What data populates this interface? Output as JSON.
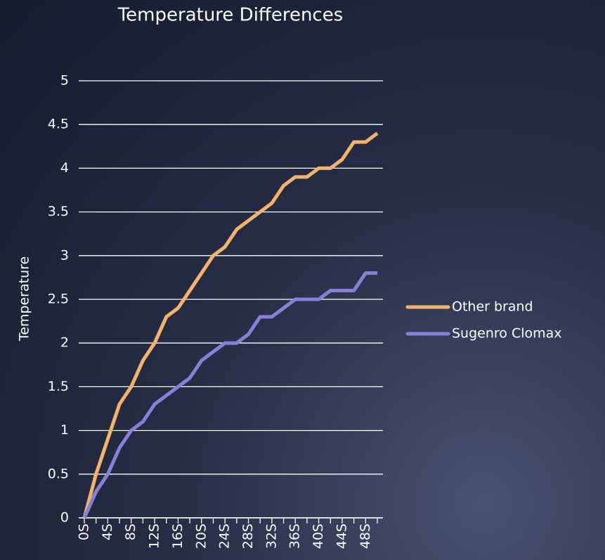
{
  "chart_data": {
    "type": "line",
    "title": "Temperature Differences",
    "y_label": "Temperature",
    "categories": [
      "0S",
      null,
      "4S",
      null,
      "8S",
      null,
      "12S",
      null,
      "16S",
      null,
      "20S",
      null,
      "24S",
      null,
      "28S",
      null,
      "32S",
      null,
      "36S",
      null,
      "40S",
      null,
      "44S",
      null,
      "48S",
      null
    ],
    "series": [
      {
        "name": "Other brand",
        "color": "#f5b26b",
        "values": [
          0,
          0.5,
          0.9,
          1.3,
          1.5,
          1.8,
          2.0,
          2.3,
          2.4,
          2.6,
          2.8,
          3.0,
          3.1,
          3.3,
          3.4,
          3.5,
          3.6,
          3.8,
          3.9,
          3.9,
          4.0,
          4.0,
          4.1,
          4.3,
          4.3,
          4.4
        ]
      },
      {
        "name": "Sugenro Clomax",
        "color": "#8a7fd8",
        "values": [
          0,
          0.3,
          0.5,
          0.8,
          1.0,
          1.1,
          1.3,
          1.4,
          1.5,
          1.6,
          1.8,
          1.9,
          2.0,
          2.0,
          2.1,
          2.3,
          2.3,
          2.4,
          2.5,
          2.5,
          2.5,
          2.6,
          2.6,
          2.6,
          2.8,
          2.8
        ]
      }
    ],
    "ylim": [
      0,
      5
    ],
    "yticks": [
      0,
      0.5,
      1,
      1.5,
      2,
      2.5,
      3,
      3.5,
      4,
      4.5,
      5
    ],
    "grid": true,
    "legend": "right"
  }
}
